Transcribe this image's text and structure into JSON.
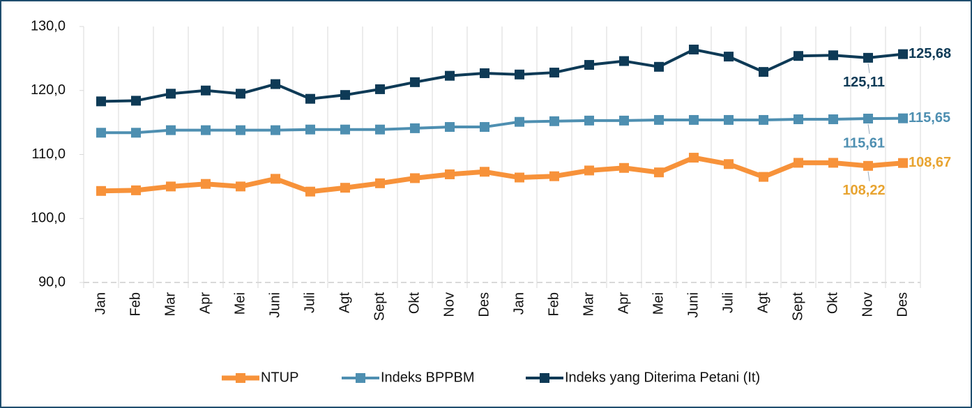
{
  "chart_data": {
    "type": "line",
    "categories": [
      "Jan",
      "Feb",
      "Mar",
      "Apr",
      "Mei",
      "Juni",
      "Juli",
      "Agt",
      "Sept",
      "Okt",
      "Nov",
      "Des",
      "Jan",
      "Feb",
      "Mar",
      "Apr",
      "Mei",
      "Juni",
      "Juli",
      "Agt",
      "Sept",
      "Okt",
      "Nov",
      "Des"
    ],
    "series": [
      {
        "name": "NTUP",
        "color": "#f7923a",
        "values": [
          104.3,
          104.4,
          105.0,
          105.4,
          105.0,
          106.2,
          104.2,
          104.8,
          105.5,
          106.3,
          106.9,
          107.3,
          106.4,
          106.6,
          107.5,
          107.9,
          107.2,
          109.5,
          108.5,
          106.5,
          108.7,
          108.7,
          108.22,
          108.67
        ],
        "value_labels": [
          null,
          null,
          null,
          null,
          null,
          null,
          null,
          null,
          null,
          null,
          null,
          null,
          null,
          null,
          null,
          null,
          null,
          null,
          null,
          null,
          null,
          null,
          "108,22",
          "108,67"
        ],
        "label_color": "#e8a431"
      },
      {
        "name": "Indeks BPPBM",
        "color": "#4e8fb1",
        "values": [
          113.4,
          113.4,
          113.8,
          113.8,
          113.8,
          113.8,
          113.9,
          113.9,
          113.9,
          114.1,
          114.3,
          114.3,
          115.1,
          115.2,
          115.3,
          115.3,
          115.4,
          115.4,
          115.4,
          115.4,
          115.5,
          115.5,
          115.61,
          115.65
        ],
        "value_labels": [
          null,
          null,
          null,
          null,
          null,
          null,
          null,
          null,
          null,
          null,
          null,
          null,
          null,
          null,
          null,
          null,
          null,
          null,
          null,
          null,
          null,
          null,
          "115,61",
          "115,65"
        ],
        "label_color": "#4e8fb1"
      },
      {
        "name": "Indeks yang Diterima Petani (It)",
        "color": "#0e3a56",
        "values": [
          118.3,
          118.4,
          119.5,
          120.0,
          119.5,
          121.0,
          118.7,
          119.3,
          120.2,
          121.3,
          122.3,
          122.7,
          122.5,
          122.8,
          124.0,
          124.6,
          123.7,
          126.4,
          125.3,
          122.9,
          125.4,
          125.5,
          125.11,
          125.68
        ],
        "value_labels": [
          null,
          null,
          null,
          null,
          null,
          null,
          null,
          null,
          null,
          null,
          null,
          null,
          null,
          null,
          null,
          null,
          null,
          null,
          null,
          null,
          null,
          null,
          "125,11",
          "125,68"
        ],
        "label_color": "#0e3a56"
      }
    ],
    "ylim": [
      90,
      130
    ],
    "yticks": [
      {
        "value": 90,
        "label": "90,0"
      },
      {
        "value": 100,
        "label": "100,0"
      },
      {
        "value": 110,
        "label": "110,0"
      },
      {
        "value": 120,
        "label": "120,0"
      },
      {
        "value": 130,
        "label": "130,0"
      }
    ],
    "legend": "bottom"
  }
}
